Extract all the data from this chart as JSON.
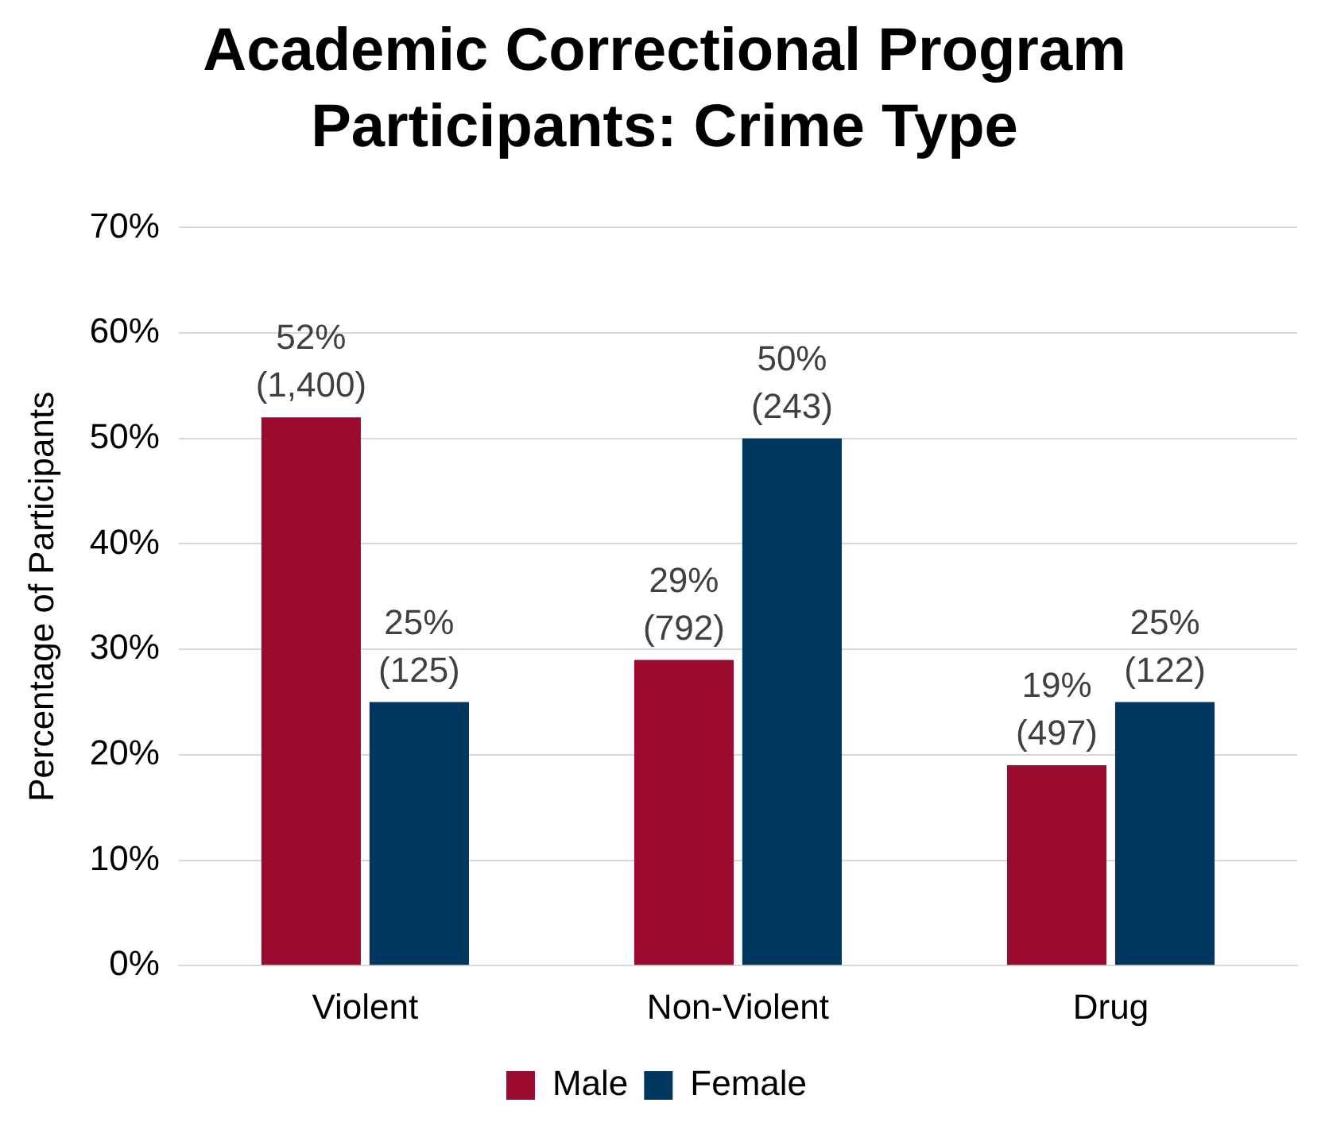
{
  "chart_data": {
    "type": "bar",
    "title": "Academic Correctional Program Participants: Crime Type",
    "ylabel": "Percentage of Participants",
    "categories": [
      "Violent",
      "Non-Violent",
      "Drug"
    ],
    "series": [
      {
        "name": "Male",
        "color": "#9b0a2f",
        "values": [
          52,
          29,
          19
        ],
        "value_labels": [
          "52%\n(1,400)",
          "29%\n(792)",
          "19%\n(497)"
        ]
      },
      {
        "name": "Female",
        "color": "#00375f",
        "values": [
          25,
          50,
          25
        ],
        "value_labels": [
          "25%\n(125)",
          "50%\n(243)",
          "25%\n(122)"
        ]
      }
    ],
    "ylim": [
      0,
      70
    ],
    "yticks": [
      {
        "value": 0,
        "label": "0%"
      },
      {
        "value": 10,
        "label": "10%"
      },
      {
        "value": 20,
        "label": "20%"
      },
      {
        "value": 30,
        "label": "30%"
      },
      {
        "value": 40,
        "label": "40%"
      },
      {
        "value": 50,
        "label": "50%"
      },
      {
        "value": 60,
        "label": "60%"
      },
      {
        "value": 70,
        "label": "70%"
      }
    ],
    "grid": "y",
    "legend": "bottom"
  }
}
